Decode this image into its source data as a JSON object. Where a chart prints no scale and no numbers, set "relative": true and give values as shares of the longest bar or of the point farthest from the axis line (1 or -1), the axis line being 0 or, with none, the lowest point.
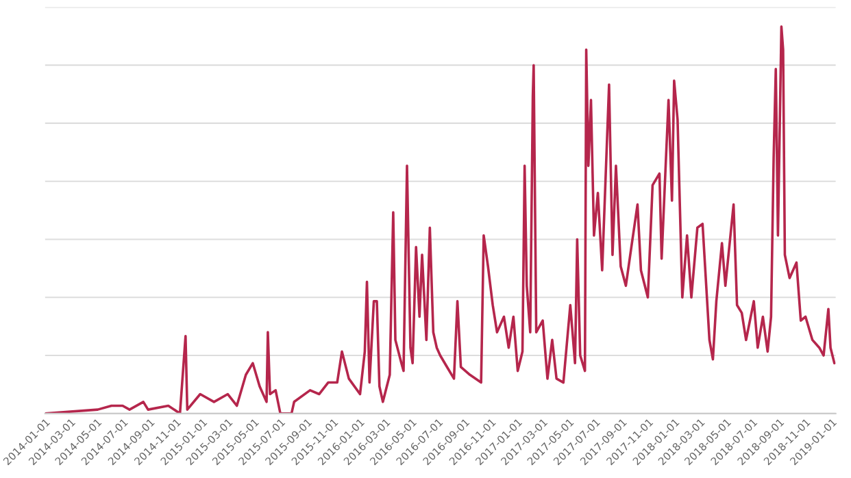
{
  "chart_data": {
    "type": "line",
    "relative": true,
    "grid": "y",
    "xlim": [
      "2014-01-01",
      "2019-01-10"
    ],
    "xticks": [
      "2014-01-01",
      "2014-03-01",
      "2014-05-01",
      "2014-07-01",
      "2014-09-01",
      "2014-11-01",
      "2015-01-01",
      "2015-03-01",
      "2015-05-01",
      "2015-07-01",
      "2015-09-01",
      "2015-11-01",
      "2016-01-01",
      "2016-03-01",
      "2016-05-01",
      "2016-07-01",
      "2016-09-01",
      "2016-11-01",
      "2017-01-01",
      "2017-03-01",
      "2017-05-01",
      "2017-07-01",
      "2017-09-01",
      "2017-11-01",
      "2018-01-01",
      "2018-03-01",
      "2018-05-01",
      "2018-07-01",
      "2018-09-01",
      "2018-11-01",
      "2019-01-01"
    ],
    "x": [
      "2014-01-01",
      "2014-05-03",
      "2014-06-04",
      "2014-06-30",
      "2014-07-16",
      "2014-08-17",
      "2014-08-28",
      "2014-10-14",
      "2014-11-10",
      "2014-11-23",
      "2014-11-27",
      "2014-12-27",
      "2015-01-28",
      "2015-03-01",
      "2015-03-22",
      "2015-04-12",
      "2015-04-28",
      "2015-05-14",
      "2015-05-30",
      "2015-06-02",
      "2015-06-07",
      "2015-06-20",
      "2015-07-01",
      "2015-07-27",
      "2015-08-02",
      "2015-09-08",
      "2015-09-29",
      "2015-10-20",
      "2015-11-10",
      "2015-11-21",
      "2015-12-07",
      "2016-01-02",
      "2016-01-13",
      "2016-01-18",
      "2016-01-24",
      "2016-02-03",
      "2016-02-10",
      "2016-02-16",
      "2016-02-24",
      "2016-03-11",
      "2016-03-19",
      "2016-03-24",
      "2016-04-07",
      "2016-04-12",
      "2016-04-20",
      "2016-04-28",
      "2016-05-03",
      "2016-05-11",
      "2016-05-19",
      "2016-05-25",
      "2016-06-04",
      "2016-06-12",
      "2016-06-20",
      "2016-06-28",
      "2016-07-06",
      "2016-07-22",
      "2016-08-07",
      "2016-08-15",
      "2016-08-23",
      "2016-09-13",
      "2016-10-09",
      "2016-10-15",
      "2016-10-25",
      "2016-11-05",
      "2016-11-15",
      "2016-12-01",
      "2016-12-12",
      "2016-12-23",
      "2017-01-02",
      "2017-01-13",
      "2017-01-18",
      "2017-01-23",
      "2017-01-31",
      "2017-02-06",
      "2017-02-08",
      "2017-02-14",
      "2017-03-01",
      "2017-03-12",
      "2017-03-23",
      "2017-04-02",
      "2017-04-18",
      "2017-05-04",
      "2017-05-15",
      "2017-05-20",
      "2017-05-27",
      "2017-06-07",
      "2017-06-10",
      "2017-06-15",
      "2017-06-21",
      "2017-06-28",
      "2017-07-07",
      "2017-07-17",
      "2017-08-02",
      "2017-08-10",
      "2017-08-18",
      "2017-08-29",
      "2017-09-10",
      "2017-09-24",
      "2017-10-07",
      "2017-10-15",
      "2017-10-31",
      "2017-11-11",
      "2017-11-27",
      "2017-12-02",
      "2017-12-18",
      "2017-12-26",
      "2017-12-31",
      "2018-01-08",
      "2018-01-19",
      "2018-01-30",
      "2018-02-09",
      "2018-02-23",
      "2018-03-07",
      "2018-03-23",
      "2018-03-31",
      "2018-04-08",
      "2018-04-21",
      "2018-04-29",
      "2018-05-18",
      "2018-05-26",
      "2018-06-06",
      "2018-06-16",
      "2018-07-04",
      "2018-07-13",
      "2018-07-25",
      "2018-08-05",
      "2018-08-13",
      "2018-08-19",
      "2018-08-24",
      "2018-08-29",
      "2018-09-06",
      "2018-09-10",
      "2018-09-14",
      "2018-09-25",
      "2018-10-11",
      "2018-10-21",
      "2018-11-01",
      "2018-11-17",
      "2018-12-03",
      "2018-12-13",
      "2018-12-24",
      "2018-12-29",
      "2019-01-07"
    ],
    "series": [
      {
        "color": "#b5264c",
        "values": [
          0,
          0.01,
          0.02,
          0.02,
          0.01,
          0.03,
          0.01,
          0.02,
          0,
          0.2,
          0.01,
          0.05,
          0.03,
          0.05,
          0.02,
          0.1,
          0.13,
          0.07,
          0.03,
          0.21,
          0.05,
          0.06,
          0,
          0,
          0.03,
          0.06,
          0.05,
          0.08,
          0.08,
          0.16,
          0.09,
          0.05,
          0.16,
          0.34,
          0.08,
          0.29,
          0.29,
          0.07,
          0.03,
          0.1,
          0.52,
          0.19,
          0.13,
          0.11,
          0.64,
          0.17,
          0.13,
          0.43,
          0.25,
          0.41,
          0.19,
          0.48,
          0.21,
          0.17,
          0.15,
          0.12,
          0.09,
          0.29,
          0.12,
          0.1,
          0.08,
          0.46,
          0.38,
          0.28,
          0.21,
          0.25,
          0.17,
          0.25,
          0.11,
          0.16,
          0.64,
          0.33,
          0.21,
          0.82,
          0.9,
          0.21,
          0.24,
          0.09,
          0.19,
          0.09,
          0.08,
          0.28,
          0.13,
          0.45,
          0.15,
          0.11,
          0.94,
          0.64,
          0.81,
          0.46,
          0.57,
          0.37,
          0.85,
          0.41,
          0.64,
          0.38,
          0.33,
          0.44,
          0.54,
          0.37,
          0.3,
          0.59,
          0.62,
          0.4,
          0.81,
          0.55,
          0.86,
          0.76,
          0.3,
          0.46,
          0.3,
          0.48,
          0.49,
          0.19,
          0.14,
          0.29,
          0.44,
          0.33,
          0.54,
          0.28,
          0.26,
          0.19,
          0.29,
          0.17,
          0.25,
          0.16,
          0.25,
          0.66,
          0.89,
          0.46,
          1,
          0.94,
          0.41,
          0.35,
          0.39,
          0.24,
          0.25,
          0.19,
          0.17,
          0.15,
          0.27,
          0.17,
          0.13
        ]
      }
    ]
  }
}
